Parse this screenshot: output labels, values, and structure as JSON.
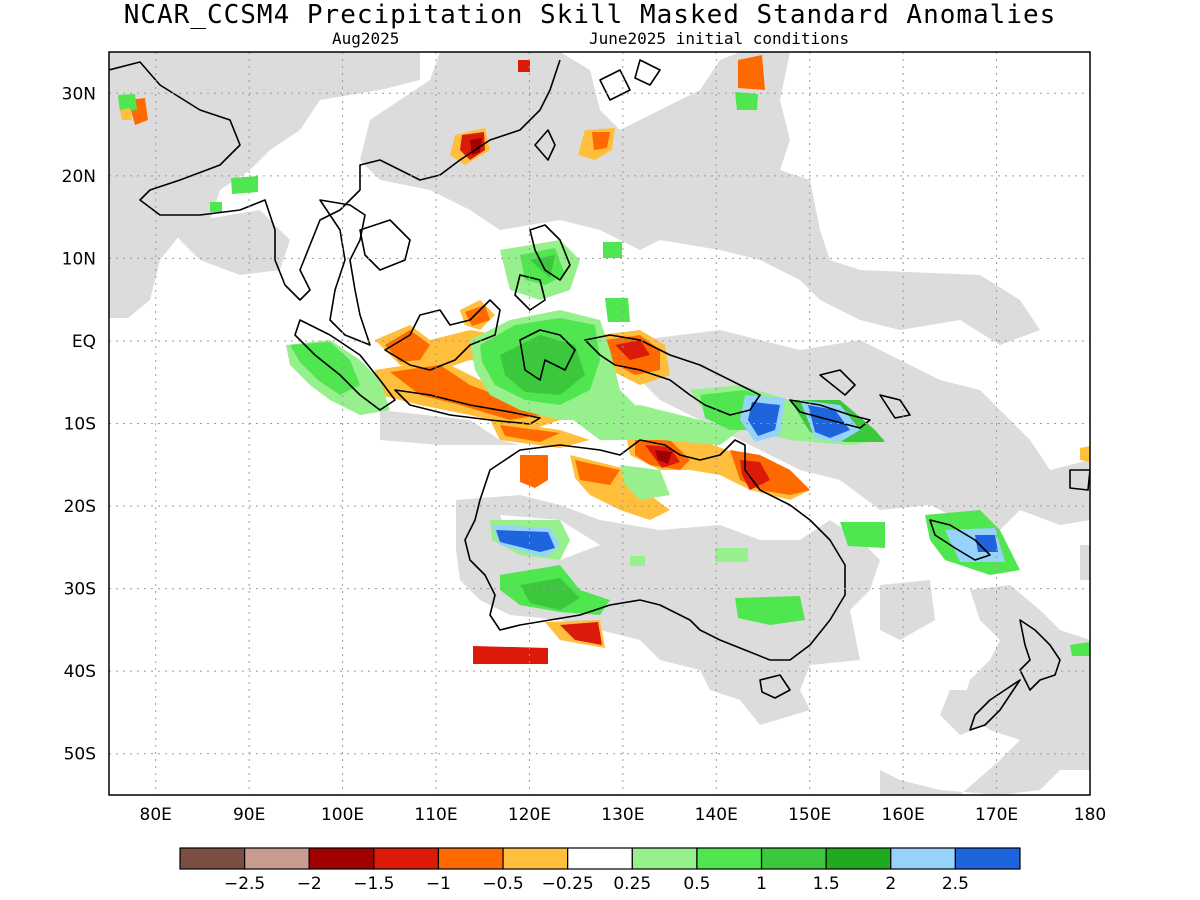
{
  "header": {
    "title": "NCAR_CCSM4 Precipitation Skill Masked Standard Anomalies",
    "target_month": "Aug2025",
    "init": "June2025 initial conditions"
  },
  "axes": {
    "lon_labels": [
      "80E",
      "90E",
      "100E",
      "110E",
      "120E",
      "130E",
      "140E",
      "150E",
      "160E",
      "170E",
      "180"
    ],
    "lon_values": [
      80,
      90,
      100,
      110,
      120,
      130,
      140,
      150,
      160,
      170,
      180
    ],
    "lat_labels": [
      "30N",
      "20N",
      "10N",
      "EQ",
      "10S",
      "20S",
      "30S",
      "40S",
      "50S"
    ],
    "lat_values": [
      30,
      20,
      10,
      0,
      -10,
      -20,
      -30,
      -40,
      -50
    ],
    "lon_range": [
      75,
      180
    ],
    "lat_range": [
      -55,
      35
    ],
    "grid": "dotted"
  },
  "colorbar": {
    "labels": [
      "−2.5",
      "−2",
      "−1.5",
      "−1",
      "−0.5",
      "−0.25",
      "0.25",
      "0.5",
      "1",
      "1.5",
      "2",
      "2.5"
    ],
    "colors": [
      "#7b4e43",
      "#c89b90",
      "#a00000",
      "#dc1a0a",
      "#ff6a00",
      "#ffbe3c",
      "#ffffff",
      "#96f08c",
      "#50e650",
      "#3cc83c",
      "#20aa20",
      "#96d2fa",
      "#1e64dc"
    ]
  },
  "legend_colors": {
    "masked": "#dcdcdc",
    "coast": "#000000"
  }
}
